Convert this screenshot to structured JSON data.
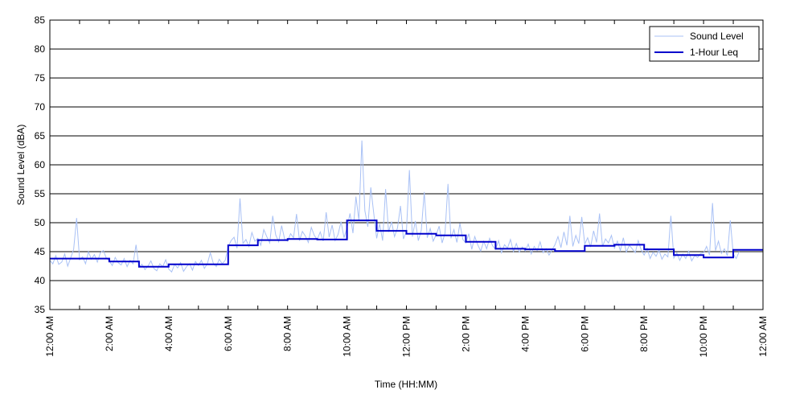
{
  "chart_data": {
    "type": "line",
    "xlabel": "Time (HH:MM)",
    "ylabel": "Sound Level (dBA)",
    "ylim": [
      35,
      85
    ],
    "xlim_hours": [
      0,
      24
    ],
    "y_ticks": [
      35,
      40,
      45,
      50,
      55,
      60,
      65,
      70,
      75,
      80,
      85
    ],
    "x_ticks": [
      {
        "hour": 0,
        "label": "12:00 AM"
      },
      {
        "hour": 2,
        "label": "2:00 AM"
      },
      {
        "hour": 4,
        "label": "4:00 AM"
      },
      {
        "hour": 6,
        "label": "6:00 AM"
      },
      {
        "hour": 8,
        "label": "8:00 AM"
      },
      {
        "hour": 10,
        "label": "10:00 AM"
      },
      {
        "hour": 12,
        "label": "12:00 PM"
      },
      {
        "hour": 14,
        "label": "2:00 PM"
      },
      {
        "hour": 16,
        "label": "4:00 PM"
      },
      {
        "hour": 18,
        "label": "6:00 PM"
      },
      {
        "hour": 20,
        "label": "8:00 PM"
      },
      {
        "hour": 22,
        "label": "10:00 PM"
      },
      {
        "hour": 24,
        "label": "12:00 AM"
      }
    ],
    "grid": "horizontal",
    "legend": {
      "placement": "top-right",
      "entries": [
        {
          "name": "Sound Level",
          "color": "#a9c1f5"
        },
        {
          "name": "1-Hour Leq",
          "color": "#0000cc"
        }
      ]
    },
    "series": [
      {
        "name": "Sound Level",
        "color": "#a9c1f5",
        "hour_start": 0,
        "hour_step": 0.1,
        "values": [
          43.5,
          42.9,
          44.3,
          42.8,
          43.2,
          44.6,
          42.5,
          43.9,
          45.4,
          50.8,
          43.6,
          44.1,
          42.9,
          45.0,
          43.7,
          44.5,
          43.2,
          44.8,
          45.2,
          43.9,
          43.4,
          42.6,
          44.0,
          43.1,
          42.7,
          43.8,
          42.4,
          43.5,
          42.9,
          46.2,
          42.3,
          42.8,
          41.9,
          42.5,
          43.4,
          42.1,
          41.7,
          42.9,
          42.4,
          43.6,
          42.0,
          41.5,
          42.8,
          42.2,
          43.1,
          41.6,
          42.4,
          42.9,
          41.8,
          43.3,
          42.6,
          43.5,
          42.1,
          42.9,
          44.8,
          43.0,
          42.4,
          43.7,
          42.9,
          43.5,
          45.8,
          46.9,
          47.5,
          45.6,
          54.2,
          46.4,
          47.1,
          45.9,
          48.3,
          46.8,
          47.3,
          46.1,
          48.8,
          47.6,
          46.5,
          51.2,
          47.9,
          46.7,
          49.5,
          47.2,
          46.8,
          48.1,
          47.4,
          51.5,
          46.9,
          48.5,
          47.7,
          46.6,
          49.2,
          47.8,
          47.1,
          48.4,
          46.8,
          51.8,
          47.5,
          49.6,
          46.9,
          48.0,
          50.2,
          47.4,
          49.1,
          51.6,
          48.2,
          54.5,
          50.4,
          64.2,
          52.1,
          49.3,
          56.1,
          51.7,
          47.3,
          49.8,
          46.9,
          55.8,
          48.4,
          50.2,
          47.6,
          49.1,
          52.9,
          47.2,
          48.5,
          59.1,
          47.6,
          50.3,
          46.9,
          48.7,
          55.3,
          47.4,
          49.0,
          46.8,
          47.9,
          49.4,
          46.5,
          48.2,
          56.7,
          47.3,
          48.8,
          46.6,
          49.9,
          47.1,
          46.5,
          48.1,
          45.4,
          47.6,
          46.2,
          45.1,
          46.8,
          45.5,
          47.3,
          46.0,
          45.4,
          46.9,
          44.8,
          46.2,
          45.6,
          47.1,
          45.0,
          46.4,
          44.9,
          45.8,
          45.1,
          46.3,
          44.6,
          45.9,
          45.2,
          46.7,
          44.8,
          45.5,
          44.4,
          45.3,
          46.2,
          47.6,
          45.7,
          48.4,
          46.1,
          51.2,
          45.9,
          47.8,
          46.4,
          51.0,
          46.3,
          47.4,
          45.8,
          48.6,
          46.6,
          51.6,
          45.9,
          47.2,
          46.5,
          47.8,
          45.6,
          46.8,
          45.2,
          47.4,
          44.9,
          46.1,
          45.5,
          44.8,
          46.9,
          45.3,
          44.4,
          45.6,
          43.8,
          44.9,
          44.2,
          45.3,
          43.7,
          44.6,
          44.1,
          51.2,
          43.9,
          44.8,
          43.5,
          44.6,
          43.8,
          45.1,
          43.4,
          44.3,
          44.0,
          44.7,
          44.8,
          45.9,
          44.4,
          53.4,
          45.2,
          46.8,
          44.7,
          45.5,
          44.3,
          50.4,
          44.6,
          43.8,
          45.0
        ]
      },
      {
        "name": "1-Hour Leq",
        "color": "#0000cc",
        "step": true,
        "hour_start": 0,
        "hour_step": 1,
        "values": [
          43.8,
          43.8,
          43.3,
          42.4,
          42.8,
          42.8,
          46.1,
          47.0,
          47.2,
          47.1,
          50.4,
          48.6,
          48.1,
          47.8,
          46.7,
          45.5,
          45.4,
          45.1,
          46.0,
          46.2,
          45.4,
          44.4,
          44.0,
          45.3
        ]
      }
    ]
  }
}
